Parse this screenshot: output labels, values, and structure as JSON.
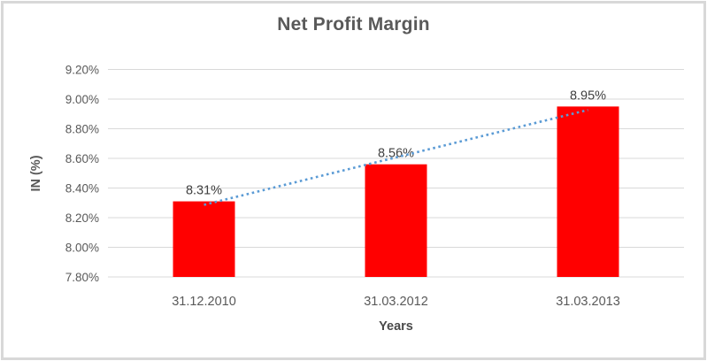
{
  "frame": {
    "border_color": "#d8d8d8",
    "background": "#ffffff"
  },
  "chart_data": {
    "type": "bar",
    "title": "Net Profit Margin",
    "xlabel": "Years",
    "ylabel": "IN (%)",
    "categories": [
      "31.12.2010",
      "31.03.2012",
      "31.03.2013"
    ],
    "series": [
      {
        "name": "Net Profit Margin",
        "values": [
          8.31,
          8.56,
          8.95
        ]
      }
    ],
    "data_labels": [
      "8.31%",
      "8.56%",
      "8.95%"
    ],
    "y_ticks": [
      {
        "label": "9.20%",
        "value": 9.2
      },
      {
        "label": "9.00%",
        "value": 9.0
      },
      {
        "label": "8.80%",
        "value": 8.8
      },
      {
        "label": "8.60%",
        "value": 8.6
      },
      {
        "label": "8.40%",
        "value": 8.4
      },
      {
        "label": "8.20%",
        "value": 8.2
      },
      {
        "label": "8.00%",
        "value": 8.0
      },
      {
        "label": "7.80%",
        "value": 7.8
      }
    ],
    "ylim": [
      7.8,
      9.2
    ],
    "grid": true,
    "legend": "none",
    "bar_color": "#ff0000",
    "gridline_color": "#d9d9d9",
    "axis_text_color": "#595959",
    "data_label_color": "#404040",
    "trendline": {
      "type": "linear",
      "style": "dotted",
      "color": "#5b9bd5"
    }
  }
}
